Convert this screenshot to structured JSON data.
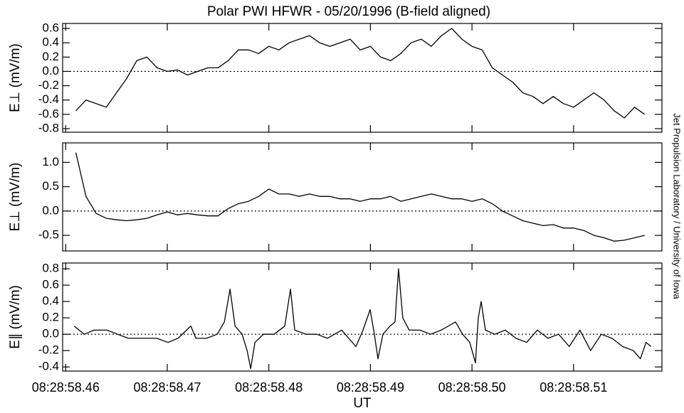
{
  "chart_data": [
    {
      "type": "line",
      "title": "Polar PWI HFWR - 05/20/1996 (B-field aligned)",
      "annotation": "Jet Propulsion Laboratory / University of Iowa",
      "ylabel": "E⊥ (mV/m)",
      "xlim": [
        58.4597,
        58.5187
      ],
      "xticks": [
        58.46,
        58.47,
        58.48,
        58.49,
        58.5,
        58.51
      ],
      "ylim": [
        -0.85,
        0.67
      ],
      "yticks": [
        -0.8,
        -0.6,
        -0.4,
        -0.2,
        {
          "value": 0,
          "label": "0.0"
        },
        0.2,
        0.4,
        0.6
      ],
      "x": [
        58.461,
        58.462,
        58.463,
        58.464,
        58.465,
        58.466,
        58.467,
        58.468,
        58.469,
        58.47,
        58.471,
        58.472,
        58.473,
        58.474,
        58.475,
        58.476,
        58.477,
        58.478,
        58.479,
        58.48,
        58.481,
        58.482,
        58.483,
        58.484,
        58.485,
        58.486,
        58.487,
        58.488,
        58.489,
        58.49,
        58.491,
        58.492,
        58.493,
        58.494,
        58.495,
        58.496,
        58.497,
        58.498,
        58.499,
        58.5,
        58.501,
        58.502,
        58.503,
        58.504,
        58.505,
        58.506,
        58.507,
        58.508,
        58.509,
        58.51,
        58.511,
        58.512,
        58.513,
        58.514,
        58.515,
        58.516,
        58.517
      ],
      "values": [
        -0.55,
        -0.4,
        -0.45,
        -0.5,
        -0.3,
        -0.1,
        0.15,
        0.2,
        0.05,
        0.0,
        0.02,
        -0.05,
        0.0,
        0.05,
        0.05,
        0.15,
        0.3,
        0.3,
        0.25,
        0.35,
        0.3,
        0.4,
        0.45,
        0.5,
        0.4,
        0.35,
        0.4,
        0.45,
        0.3,
        0.35,
        0.2,
        0.15,
        0.25,
        0.4,
        0.45,
        0.35,
        0.5,
        0.6,
        0.45,
        0.35,
        0.3,
        0.05,
        -0.05,
        -0.15,
        -0.3,
        -0.35,
        -0.45,
        -0.35,
        -0.45,
        -0.5,
        -0.4,
        -0.3,
        -0.4,
        -0.55,
        -0.65,
        -0.5,
        -0.6
      ]
    },
    {
      "type": "line",
      "ylabel": "E⊥ (mV/m)",
      "xlim": [
        58.4597,
        58.5187
      ],
      "xticks": [
        58.46,
        58.47,
        58.48,
        58.49,
        58.5,
        58.51
      ],
      "ylim": [
        -0.82,
        1.4
      ],
      "yticks": [
        -0.5,
        {
          "value": 0,
          "label": "0.0"
        },
        0.5,
        {
          "value": 1,
          "label": "1.0"
        }
      ],
      "x": [
        58.461,
        58.462,
        58.463,
        58.464,
        58.465,
        58.466,
        58.467,
        58.468,
        58.469,
        58.47,
        58.471,
        58.472,
        58.473,
        58.474,
        58.475,
        58.476,
        58.477,
        58.478,
        58.479,
        58.48,
        58.481,
        58.482,
        58.483,
        58.484,
        58.485,
        58.486,
        58.487,
        58.488,
        58.489,
        58.49,
        58.491,
        58.492,
        58.493,
        58.494,
        58.495,
        58.496,
        58.497,
        58.498,
        58.499,
        58.5,
        58.501,
        58.502,
        58.503,
        58.504,
        58.505,
        58.506,
        58.507,
        58.508,
        58.509,
        58.51,
        58.511,
        58.512,
        58.513,
        58.514,
        58.515,
        58.516,
        58.517
      ],
      "values": [
        1.2,
        0.3,
        -0.05,
        -0.15,
        -0.18,
        -0.2,
        -0.18,
        -0.15,
        -0.08,
        -0.02,
        -0.08,
        -0.05,
        -0.08,
        -0.1,
        -0.1,
        0.05,
        0.15,
        0.2,
        0.3,
        0.45,
        0.35,
        0.35,
        0.3,
        0.35,
        0.3,
        0.3,
        0.25,
        0.25,
        0.2,
        0.25,
        0.25,
        0.3,
        0.2,
        0.25,
        0.3,
        0.35,
        0.3,
        0.25,
        0.25,
        0.2,
        0.25,
        0.15,
        0.0,
        -0.1,
        -0.2,
        -0.25,
        -0.3,
        -0.28,
        -0.35,
        -0.35,
        -0.4,
        -0.5,
        -0.55,
        -0.62,
        -0.6,
        -0.55,
        -0.5
      ]
    },
    {
      "type": "line",
      "ylabel": "E∥ (mV/m)",
      "xlabel": "UT",
      "xlim": [
        58.4597,
        58.5187
      ],
      "xticks": [
        {
          "value": 58.46,
          "label": "08:28:58.46"
        },
        {
          "value": 58.47,
          "label": "08:28:58.47"
        },
        {
          "value": 58.48,
          "label": "08:28:58.48"
        },
        {
          "value": 58.49,
          "label": "08:28:58.49"
        },
        {
          "value": 58.5,
          "label": "08:28:58.50"
        },
        {
          "value": 58.51,
          "label": "08:28:58.51"
        }
      ],
      "ylim": [
        -0.45,
        0.87
      ],
      "yticks": [
        -0.4,
        -0.2,
        {
          "value": 0,
          "label": "0.0"
        },
        0.2,
        0.4,
        0.6,
        0.8
      ],
      "x": [
        58.46084,
        58.46182,
        58.4628,
        58.46406,
        58.46511,
        58.46616,
        58.46756,
        58.46896,
        58.47008,
        58.47106,
        58.4719,
        58.47232,
        58.47282,
        58.47387,
        58.47492,
        58.47562,
        58.47618,
        58.47667,
        58.47737,
        58.47786,
        58.47821,
        58.47863,
        58.47947,
        58.48052,
        58.48157,
        58.48213,
        58.48255,
        58.48367,
        58.48472,
        58.48577,
        58.48647,
        58.48717,
        58.48787,
        58.48857,
        58.48927,
        58.48997,
        58.49039,
        58.49074,
        58.49123,
        58.49193,
        58.49242,
        58.49277,
        58.49319,
        58.49382,
        58.49487,
        58.49592,
        58.49697,
        58.49838,
        58.49908,
        58.49978,
        58.50034,
        58.50062,
        58.5009,
        58.50132,
        58.50223,
        58.50328,
        58.50433,
        58.50538,
        58.50643,
        58.50748,
        58.50853,
        58.50958,
        58.51063,
        58.51168,
        58.51273,
        58.51378,
        58.51483,
        58.51588,
        58.51658,
        58.51714,
        58.51763
      ],
      "values": [
        0.1,
        0.0,
        0.05,
        0.05,
        0.0,
        -0.05,
        -0.05,
        -0.05,
        -0.1,
        -0.05,
        0.05,
        0.1,
        -0.05,
        -0.05,
        0.0,
        0.15,
        0.55,
        0.1,
        0.0,
        -0.2,
        -0.42,
        -0.1,
        0.0,
        0.0,
        0.1,
        0.55,
        0.05,
        0.0,
        0.0,
        -0.05,
        0.0,
        0.05,
        -0.05,
        -0.15,
        0.05,
        0.3,
        0.0,
        -0.3,
        0.0,
        0.1,
        0.15,
        0.8,
        0.2,
        0.05,
        0.05,
        0.0,
        0.05,
        0.15,
        0.0,
        -0.1,
        -0.35,
        0.2,
        0.4,
        0.05,
        0.0,
        0.05,
        -0.05,
        -0.1,
        0.05,
        -0.05,
        0.0,
        -0.15,
        0.05,
        -0.2,
        0.0,
        -0.05,
        -0.15,
        -0.2,
        -0.3,
        -0.1,
        -0.15
      ]
    }
  ]
}
